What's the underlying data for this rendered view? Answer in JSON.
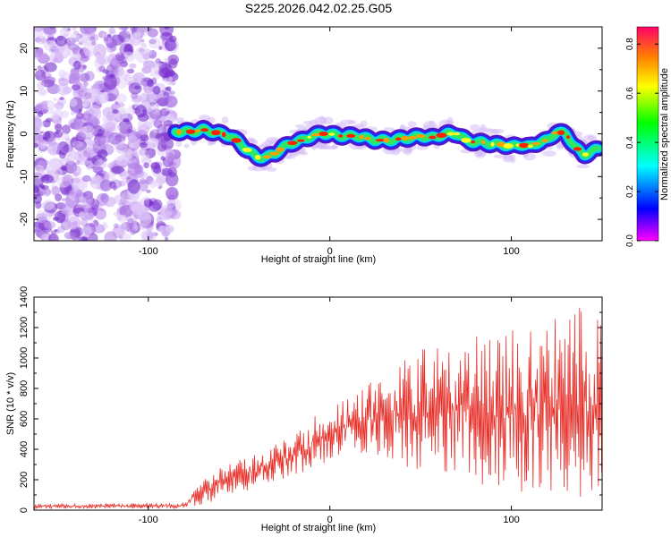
{
  "title": "S225.2026.042.02.25.G05",
  "chart_data": [
    {
      "type": "heatmap",
      "xlabel": "Height of straight line (km)",
      "ylabel": "Frequency (Hz)",
      "xlim": [
        -163,
        150
      ],
      "ylim": [
        -25,
        25
      ],
      "x_ticks": [
        -100,
        0,
        100
      ],
      "y_ticks": [
        20,
        10,
        0,
        -10,
        -20
      ],
      "colorbar": {
        "label": "Normalized spectral amplitude",
        "range": [
          0,
          0.87
        ],
        "ticks": [
          0.0,
          0.2,
          0.4,
          0.6,
          0.8
        ],
        "colormap": [
          "#ff00ff",
          "#0000ff",
          "#00ffff",
          "#00ff00",
          "#ffff00",
          "#ff8000",
          "#ff0000"
        ]
      },
      "noise_region_x": [
        -163,
        -85
      ],
      "ridge": {
        "x": [
          -85,
          -80,
          -75,
          -70,
          -65,
          -60,
          -55,
          -50,
          -45,
          -40,
          -35,
          -30,
          -25,
          -20,
          -15,
          -10,
          -5,
          0,
          5,
          10,
          15,
          20,
          25,
          30,
          35,
          40,
          45,
          50,
          55,
          60,
          65,
          70,
          75,
          80,
          85,
          90,
          95,
          100,
          105,
          110,
          115,
          120,
          125,
          130,
          135,
          140,
          145,
          148
        ],
        "freq": [
          0.5,
          0.5,
          0.5,
          1.0,
          0.5,
          0.0,
          -0.5,
          -2.0,
          -4.0,
          -5.5,
          -5.5,
          -4.5,
          -3.0,
          -2.0,
          -1.5,
          -0.5,
          0.0,
          0.0,
          -0.5,
          -0.5,
          -0.5,
          -1.0,
          -1.5,
          -1.5,
          -1.5,
          -1.0,
          -1.0,
          -0.5,
          -1.0,
          -0.5,
          0.0,
          0.0,
          -1.5,
          -2.0,
          -2.0,
          -2.5,
          -2.5,
          -3.0,
          -2.5,
          -3.0,
          -2.0,
          -1.5,
          0.5,
          0.0,
          -3.0,
          -5.0,
          -4.0,
          -3.5
        ]
      }
    },
    {
      "type": "line",
      "xlabel": "Height of straight line (km)",
      "ylabel": "SNR (10 * v/v)",
      "xlim": [
        -163,
        150
      ],
      "ylim": [
        0,
        1400
      ],
      "x_ticks": [
        -100,
        0,
        100
      ],
      "y_ticks": [
        0,
        200,
        400,
        600,
        800,
        1000,
        1200,
        1400
      ],
      "color": "#e8302a",
      "envelope": {
        "x": [
          -163,
          -120,
          -80,
          -75,
          -70,
          -60,
          -50,
          -40,
          -30,
          -20,
          -10,
          0,
          10,
          20,
          30,
          40,
          50,
          60,
          70,
          80,
          90,
          100,
          110,
          120,
          130,
          140,
          150
        ],
        "low": [
          10,
          10,
          10,
          20,
          40,
          70,
          110,
          150,
          190,
          230,
          270,
          320,
          350,
          380,
          350,
          280,
          230,
          180,
          160,
          140,
          120,
          110,
          90,
          80,
          80,
          80,
          80
        ],
        "high": [
          40,
          45,
          50,
          150,
          200,
          280,
          330,
          380,
          440,
          500,
          600,
          700,
          760,
          820,
          900,
          980,
          1060,
          1100,
          1120,
          1150,
          1170,
          1200,
          1220,
          1250,
          1300,
          1350,
          1300
        ]
      }
    }
  ]
}
